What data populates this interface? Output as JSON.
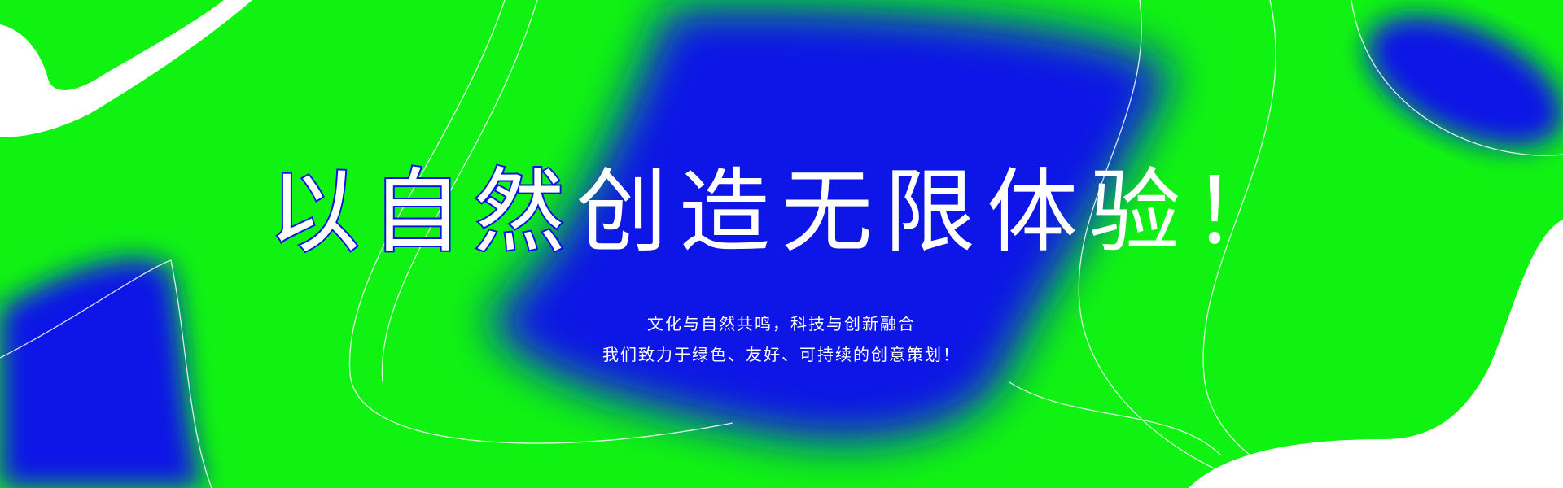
{
  "banner": {
    "headline_outlined": "以自然",
    "headline_solid": "创造无限体验！",
    "subline_1": "文化与自然共鸣，科技与创新融合",
    "subline_2": "我们致力于绿色、友好、可持续的创意策划！"
  },
  "colors": {
    "background_green": "#10f312",
    "accent_blue": "#0a12e6",
    "text_white": "#ffffff"
  }
}
